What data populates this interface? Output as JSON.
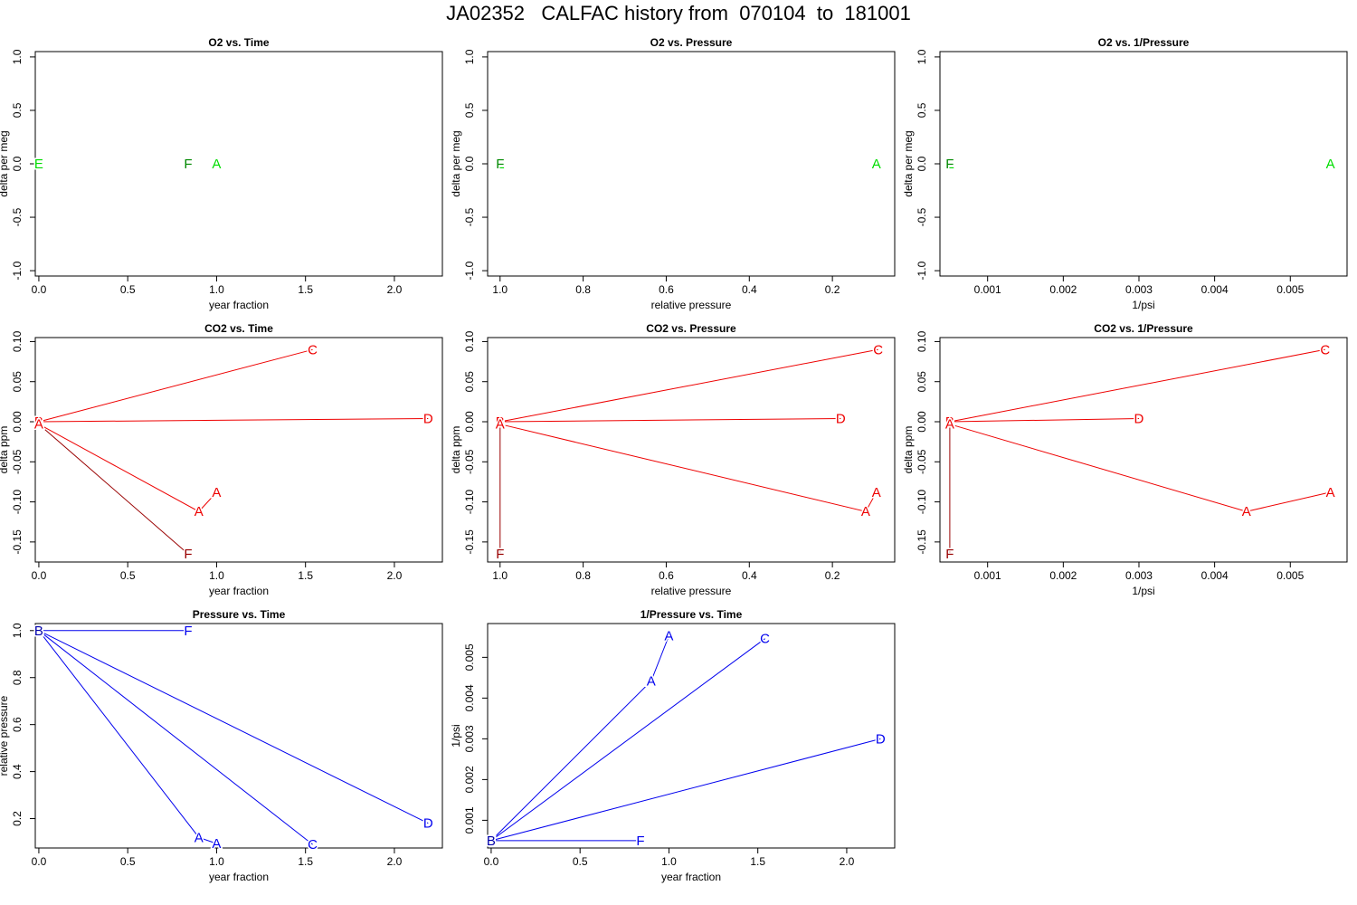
{
  "title": "JA02352   CALFAC history from  070104  to  181001",
  "colors": {
    "o2": "#00dd00",
    "o2_dark": "#008800",
    "co2": "#ee0000",
    "co2_dark": "#990000",
    "pressure": "#0000ee",
    "pressure_dark": "#0000aa"
  },
  "chart_data": [
    {
      "id": "o2-time",
      "type": "scatter",
      "title": "O2 vs. Time",
      "xlabel": "year fraction",
      "ylabel": "delta per meg",
      "xlim": [
        -0.02,
        2.27
      ],
      "ylim": [
        -1.05,
        1.05
      ],
      "xticks": [
        0.0,
        0.5,
        1.0,
        1.5,
        2.0
      ],
      "xticklabels": [
        "0.0",
        "0.5",
        "1.0",
        "1.5",
        "2.0"
      ],
      "yticks": [
        -1.0,
        -0.5,
        0.0,
        0.5,
        1.0
      ],
      "yticklabels": [
        "-1.0",
        "-0.5",
        "0.0",
        "0.5",
        "1.0"
      ],
      "color": "o2",
      "lines": [],
      "points": [
        {
          "label": "E",
          "x": 0.0,
          "y": 0.0,
          "dark": false
        },
        {
          "label": "F",
          "x": 0.84,
          "y": 0.0,
          "dark": true
        },
        {
          "label": "A",
          "x": 1.0,
          "y": 0.0,
          "dark": false
        }
      ]
    },
    {
      "id": "o2-pressure",
      "type": "scatter",
      "title": "O2 vs. Pressure",
      "xlabel": "relative pressure",
      "ylabel": "delta per meg",
      "xlim": [
        1.03,
        0.05
      ],
      "ylim": [
        -1.05,
        1.05
      ],
      "xticks": [
        1.0,
        0.8,
        0.6,
        0.4,
        0.2
      ],
      "xticklabels": [
        "1.0",
        "0.8",
        "0.6",
        "0.4",
        "0.2"
      ],
      "yticks": [
        -1.0,
        -0.5,
        0.0,
        0.5,
        1.0
      ],
      "yticklabels": [
        "-1.0",
        "-0.5",
        "0.0",
        "0.5",
        "1.0"
      ],
      "color": "o2",
      "lines": [],
      "points": [
        {
          "label": "E",
          "x": 1.0,
          "y": 0.0,
          "dark": false
        },
        {
          "label": "F",
          "x": 1.0,
          "y": 0.0,
          "dark": true
        },
        {
          "label": "A",
          "x": 0.094,
          "y": 0.0,
          "dark": false
        }
      ]
    },
    {
      "id": "o2-invpressure",
      "type": "scatter",
      "title": "O2 vs. 1/Pressure",
      "xlabel": "1/psi",
      "ylabel": "delta per meg",
      "xlim": [
        0.00037,
        0.00575
      ],
      "ylim": [
        -1.05,
        1.05
      ],
      "xticks": [
        0.001,
        0.002,
        0.003,
        0.004,
        0.005
      ],
      "xticklabels": [
        "0.001",
        "0.002",
        "0.003",
        "0.004",
        "0.005"
      ],
      "yticks": [
        -1.0,
        -0.5,
        0.0,
        0.5,
        1.0
      ],
      "yticklabels": [
        "-1.0",
        "-0.5",
        "0.0",
        "0.5",
        "1.0"
      ],
      "color": "o2",
      "lines": [],
      "points": [
        {
          "label": "E",
          "x": 0.0005,
          "y": 0.0,
          "dark": false
        },
        {
          "label": "F",
          "x": 0.0005,
          "y": 0.0,
          "dark": true
        },
        {
          "label": "A",
          "x": 0.00553,
          "y": 0.0,
          "dark": false
        }
      ]
    },
    {
      "id": "co2-time",
      "type": "line",
      "title": "CO2 vs. Time",
      "xlabel": "year fraction",
      "ylabel": "delta ppm",
      "xlim": [
        -0.02,
        2.27
      ],
      "ylim": [
        -0.175,
        0.105
      ],
      "xticks": [
        0.0,
        0.5,
        1.0,
        1.5,
        2.0
      ],
      "xticklabels": [
        "0.0",
        "0.5",
        "1.0",
        "1.5",
        "2.0"
      ],
      "yticks": [
        -0.15,
        -0.1,
        -0.05,
        0.0,
        0.05,
        0.1
      ],
      "yticklabels": [
        "-0.15",
        "-0.10",
        "-0.05",
        "0.00",
        "0.05",
        "0.10"
      ],
      "color": "co2",
      "lines": [
        {
          "x": [
            0.0,
            1.54
          ],
          "y": [
            0.0,
            0.09
          ],
          "dark": false
        },
        {
          "x": [
            0.0,
            2.19
          ],
          "y": [
            0.0,
            0.004
          ],
          "dark": false
        },
        {
          "x": [
            0.0,
            0.9,
            1.0
          ],
          "y": [
            -0.003,
            -0.112,
            -0.088
          ],
          "dark": false
        },
        {
          "x": [
            0.0,
            0.84
          ],
          "y": [
            -0.003,
            -0.165
          ],
          "dark": true
        }
      ],
      "points": [
        {
          "label": "E",
          "x": 0.0,
          "y": 0.0,
          "dark": false
        },
        {
          "label": "B",
          "x": 0.0,
          "y": 0.0,
          "dark": false
        },
        {
          "label": "A",
          "x": 0.0,
          "y": -0.003,
          "dark": false
        },
        {
          "label": "C",
          "x": 1.54,
          "y": 0.09,
          "dark": false
        },
        {
          "label": "D",
          "x": 2.19,
          "y": 0.004,
          "dark": false
        },
        {
          "label": "A",
          "x": 0.9,
          "y": -0.112,
          "dark": false
        },
        {
          "label": "A",
          "x": 1.0,
          "y": -0.088,
          "dark": false
        },
        {
          "label": "F",
          "x": 0.84,
          "y": -0.165,
          "dark": true
        }
      ]
    },
    {
      "id": "co2-pressure",
      "type": "line",
      "title": "CO2 vs. Pressure",
      "xlabel": "relative pressure",
      "ylabel": "delta ppm",
      "xlim": [
        1.03,
        0.05
      ],
      "ylim": [
        -0.175,
        0.105
      ],
      "xticks": [
        1.0,
        0.8,
        0.6,
        0.4,
        0.2
      ],
      "xticklabels": [
        "1.0",
        "0.8",
        "0.6",
        "0.4",
        "0.2"
      ],
      "yticks": [
        -0.15,
        -0.1,
        -0.05,
        0.0,
        0.05,
        0.1
      ],
      "yticklabels": [
        "-0.15",
        "-0.10",
        "-0.05",
        "0.00",
        "0.05",
        "0.10"
      ],
      "color": "co2",
      "lines": [
        {
          "x": [
            1.0,
            0.09
          ],
          "y": [
            0.0,
            0.09
          ],
          "dark": false
        },
        {
          "x": [
            1.0,
            0.18
          ],
          "y": [
            0.0,
            0.004
          ],
          "dark": false
        },
        {
          "x": [
            1.0,
            0.12,
            0.094
          ],
          "y": [
            -0.003,
            -0.112,
            -0.088
          ],
          "dark": false
        },
        {
          "x": [
            1.0,
            1.0
          ],
          "y": [
            -0.003,
            -0.165
          ],
          "dark": true
        }
      ],
      "points": [
        {
          "label": "E",
          "x": 1.0,
          "y": 0.0,
          "dark": false
        },
        {
          "label": "B",
          "x": 1.0,
          "y": 0.0,
          "dark": false
        },
        {
          "label": "A",
          "x": 1.0,
          "y": -0.003,
          "dark": false
        },
        {
          "label": "C",
          "x": 0.09,
          "y": 0.09,
          "dark": false
        },
        {
          "label": "D",
          "x": 0.18,
          "y": 0.004,
          "dark": false
        },
        {
          "label": "A",
          "x": 0.12,
          "y": -0.112,
          "dark": false
        },
        {
          "label": "A",
          "x": 0.094,
          "y": -0.088,
          "dark": false
        },
        {
          "label": "F",
          "x": 1.0,
          "y": -0.165,
          "dark": true
        }
      ]
    },
    {
      "id": "co2-invpressure",
      "type": "line",
      "title": "CO2 vs. 1/Pressure",
      "xlabel": "1/psi",
      "ylabel": "delta ppm",
      "xlim": [
        0.00037,
        0.00575
      ],
      "ylim": [
        -0.175,
        0.105
      ],
      "xticks": [
        0.001,
        0.002,
        0.003,
        0.004,
        0.005
      ],
      "xticklabels": [
        "0.001",
        "0.002",
        "0.003",
        "0.004",
        "0.005"
      ],
      "yticks": [
        -0.15,
        -0.1,
        -0.05,
        0.0,
        0.05,
        0.1
      ],
      "yticklabels": [
        "-0.15",
        "-0.10",
        "-0.05",
        "0.00",
        "0.05",
        "0.10"
      ],
      "color": "co2",
      "lines": [
        {
          "x": [
            0.0005,
            0.00546
          ],
          "y": [
            0.0,
            0.09
          ],
          "dark": false
        },
        {
          "x": [
            0.0005,
            0.003
          ],
          "y": [
            0.0,
            0.004
          ],
          "dark": false
        },
        {
          "x": [
            0.0005,
            0.00442,
            0.00553
          ],
          "y": [
            -0.003,
            -0.112,
            -0.088
          ],
          "dark": false
        },
        {
          "x": [
            0.0005,
            0.0005
          ],
          "y": [
            -0.003,
            -0.165
          ],
          "dark": true
        }
      ],
      "points": [
        {
          "label": "E",
          "x": 0.0005,
          "y": 0.0,
          "dark": false
        },
        {
          "label": "B",
          "x": 0.0005,
          "y": 0.0,
          "dark": false
        },
        {
          "label": "A",
          "x": 0.0005,
          "y": -0.003,
          "dark": false
        },
        {
          "label": "C",
          "x": 0.00546,
          "y": 0.09,
          "dark": false
        },
        {
          "label": "D",
          "x": 0.003,
          "y": 0.004,
          "dark": false
        },
        {
          "label": "A",
          "x": 0.00442,
          "y": -0.112,
          "dark": false
        },
        {
          "label": "A",
          "x": 0.00553,
          "y": -0.088,
          "dark": false
        },
        {
          "label": "F",
          "x": 0.0005,
          "y": -0.165,
          "dark": true
        }
      ]
    },
    {
      "id": "pressure-time",
      "type": "line",
      "title": "Pressure vs. Time",
      "xlabel": "year fraction",
      "ylabel": "relative pressure",
      "xlim": [
        -0.02,
        2.27
      ],
      "ylim": [
        0.075,
        1.03
      ],
      "xticks": [
        0.0,
        0.5,
        1.0,
        1.5,
        2.0
      ],
      "xticklabels": [
        "0.0",
        "0.5",
        "1.0",
        "1.5",
        "2.0"
      ],
      "yticks": [
        0.2,
        0.4,
        0.6,
        0.8,
        1.0
      ],
      "yticklabels": [
        "0.2",
        "0.4",
        "0.6",
        "0.8",
        "1.0"
      ],
      "color": "pressure",
      "lines": [
        {
          "x": [
            0.0,
            0.84
          ],
          "y": [
            1.0,
            1.0
          ],
          "dark": false
        },
        {
          "x": [
            0.0,
            0.9,
            1.0
          ],
          "y": [
            1.0,
            0.12,
            0.094
          ],
          "dark": false
        },
        {
          "x": [
            0.0,
            1.54
          ],
          "y": [
            1.0,
            0.09
          ],
          "dark": false
        },
        {
          "x": [
            0.0,
            2.19
          ],
          "y": [
            1.0,
            0.18
          ],
          "dark": false
        }
      ],
      "points": [
        {
          "label": "E",
          "x": 0.0,
          "y": 1.0,
          "dark": false
        },
        {
          "label": "B",
          "x": 0.0,
          "y": 1.0,
          "dark": true
        },
        {
          "label": "F",
          "x": 0.84,
          "y": 1.0,
          "dark": false
        },
        {
          "label": "A",
          "x": 0.9,
          "y": 0.12,
          "dark": false
        },
        {
          "label": "A",
          "x": 1.0,
          "y": 0.094,
          "dark": false
        },
        {
          "label": "C",
          "x": 1.54,
          "y": 0.09,
          "dark": false
        },
        {
          "label": "D",
          "x": 2.19,
          "y": 0.18,
          "dark": false
        }
      ]
    },
    {
      "id": "invpressure-time",
      "type": "line",
      "title": "1/Pressure vs. Time",
      "xlabel": "year fraction",
      "ylabel": "1/psi",
      "xlim": [
        -0.02,
        2.27
      ],
      "ylim": [
        0.00032,
        0.00583
      ],
      "xticks": [
        0.0,
        0.5,
        1.0,
        1.5,
        2.0
      ],
      "xticklabels": [
        "0.0",
        "0.5",
        "1.0",
        "1.5",
        "2.0"
      ],
      "yticks": [
        0.001,
        0.002,
        0.003,
        0.004,
        0.005
      ],
      "yticklabels": [
        "0.001",
        "0.002",
        "0.003",
        "0.004",
        "0.005"
      ],
      "color": "pressure",
      "lines": [
        {
          "x": [
            0.0,
            0.84
          ],
          "y": [
            0.0005,
            0.0005
          ],
          "dark": false
        },
        {
          "x": [
            0.0,
            0.9,
            1.0
          ],
          "y": [
            0.0005,
            0.00442,
            0.00553
          ],
          "dark": false
        },
        {
          "x": [
            0.0,
            1.54
          ],
          "y": [
            0.0005,
            0.00546
          ],
          "dark": false
        },
        {
          "x": [
            0.0,
            2.19
          ],
          "y": [
            0.0005,
            0.003
          ],
          "dark": false
        }
      ],
      "points": [
        {
          "label": "E",
          "x": 0.0,
          "y": 0.0005,
          "dark": false
        },
        {
          "label": "B",
          "x": 0.0,
          "y": 0.0005,
          "dark": true
        },
        {
          "label": "F",
          "x": 0.84,
          "y": 0.0005,
          "dark": false
        },
        {
          "label": "A",
          "x": 0.9,
          "y": 0.00442,
          "dark": false
        },
        {
          "label": "A",
          "x": 1.0,
          "y": 0.00553,
          "dark": false
        },
        {
          "label": "C",
          "x": 1.54,
          "y": 0.00546,
          "dark": false
        },
        {
          "label": "D",
          "x": 2.19,
          "y": 0.003,
          "dark": false
        }
      ]
    }
  ]
}
